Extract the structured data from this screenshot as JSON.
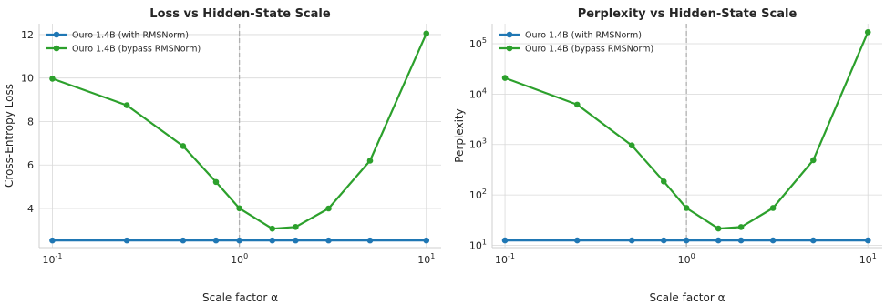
{
  "chart_data": [
    {
      "type": "line",
      "title": "Loss vs Hidden-State Scale",
      "xlabel": "Scale factor α",
      "ylabel": "Cross-Entropy Loss",
      "x_scale": "log",
      "y_scale": "linear",
      "xlim": [
        0.085,
        12
      ],
      "ylim": [
        2.2,
        12.5
      ],
      "x_ticks": [
        0.1,
        1,
        10
      ],
      "x_tick_labels": [
        "10^-1",
        "10^0",
        "10^1"
      ],
      "y_ticks": [
        4,
        6,
        8,
        10,
        12
      ],
      "y_tick_labels": [
        "4",
        "6",
        "8",
        "10",
        "12"
      ],
      "reference_vline": 1,
      "grid": true,
      "legend_position": "top-left",
      "x": [
        0.1,
        0.25,
        0.5,
        0.75,
        1.0,
        1.5,
        2.0,
        3.0,
        5.0,
        10.0
      ],
      "series": [
        {
          "name": "Ouro 1.4B (with RMSNorm)",
          "color": "#1f77b4",
          "values": [
            2.53,
            2.53,
            2.53,
            2.53,
            2.53,
            2.53,
            2.53,
            2.53,
            2.53,
            2.53
          ]
        },
        {
          "name": "Ouro 1.4B (bypass RMSNorm)",
          "color": "#2ca02c",
          "values": [
            9.97,
            8.75,
            6.87,
            5.22,
            4.01,
            3.07,
            3.15,
            4.0,
            6.2,
            12.05
          ]
        }
      ]
    },
    {
      "type": "line",
      "title": "Perplexity vs Hidden-State Scale",
      "xlabel": "Scale factor α",
      "ylabel": "Perplexity",
      "x_scale": "log",
      "y_scale": "log",
      "xlim": [
        0.085,
        12
      ],
      "ylim": [
        9,
        250000
      ],
      "x_ticks": [
        0.1,
        1,
        10
      ],
      "x_tick_labels": [
        "10^-1",
        "10^0",
        "10^1"
      ],
      "y_ticks": [
        10,
        100,
        1000,
        10000,
        100000
      ],
      "y_tick_labels": [
        "10^1",
        "10^2",
        "10^3",
        "10^4",
        "10^5"
      ],
      "reference_vline": 1,
      "grid": true,
      "legend_position": "top-left",
      "x": [
        0.1,
        0.25,
        0.5,
        0.75,
        1.0,
        1.5,
        2.0,
        3.0,
        5.0,
        10.0
      ],
      "series": [
        {
          "name": "Ouro 1.4B (with RMSNorm)",
          "color": "#1f77b4",
          "values": [
            12.5,
            12.5,
            12.5,
            12.5,
            12.5,
            12.5,
            12.5,
            12.5,
            12.5,
            12.5
          ]
        },
        {
          "name": "Ouro 1.4B (bypass RMSNorm)",
          "color": "#2ca02c",
          "values": [
            21000,
            6200,
            960,
            185,
            55,
            21.5,
            23,
            55,
            490,
            170000
          ]
        }
      ]
    }
  ]
}
